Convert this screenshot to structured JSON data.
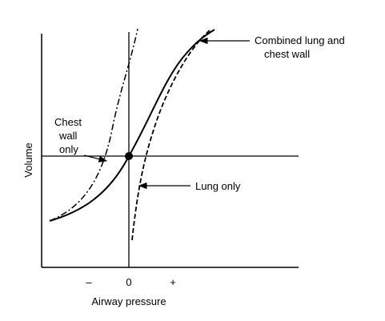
{
  "chart_data": {
    "type": "line",
    "xlabel": "Airway pressure",
    "ylabel": "Volume",
    "x_ticks": [
      "–",
      "0",
      "+"
    ],
    "series": [
      {
        "name": "Combined lung and chest wall",
        "style": "solid"
      },
      {
        "name": "Chest wall only",
        "style": "dash-dot"
      },
      {
        "name": "Lung only",
        "style": "dashed"
      }
    ]
  },
  "annotations": {
    "combined_line1": "Combined lung and",
    "combined_line2": "chest wall",
    "chest_line1": "Chest",
    "chest_line2": "wall",
    "chest_line3": "only",
    "lung": "Lung only"
  },
  "colors": {
    "ink": "#000000",
    "background": "#ffffff"
  }
}
